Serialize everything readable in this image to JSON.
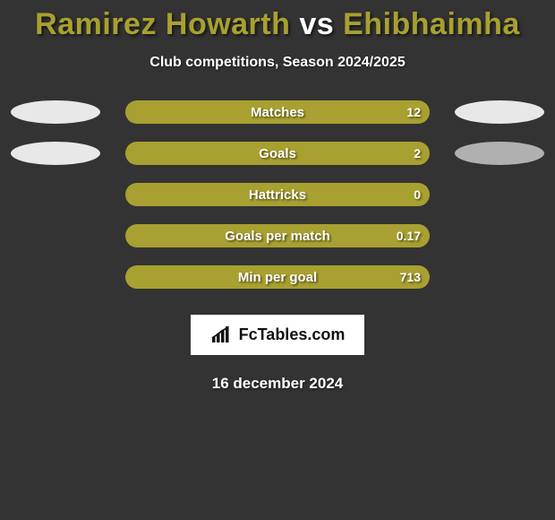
{
  "colors": {
    "background": "#333333",
    "title_player": "#a8a030",
    "title_vs": "#ffffff",
    "bar_fill": "#a8a030",
    "ellipse_left_top": "#e8e8e8",
    "ellipse_right_top": "#e8e8e8",
    "ellipse_left_goals": "#e8e8e8",
    "ellipse_right_goals": "#b0b0b0",
    "brand_bg": "#ffffff",
    "brand_text": "#111111"
  },
  "header": {
    "player1": "Ramirez Howarth",
    "vs": "vs",
    "player2": "Ehibhaimha",
    "subtitle": "Club competitions, Season 2024/2025"
  },
  "stats": [
    {
      "label": "Matches",
      "value": "12",
      "left_ellipse": true,
      "right_ellipse": true,
      "left_color": "#e8e8e8",
      "right_color": "#e8e8e8"
    },
    {
      "label": "Goals",
      "value": "2",
      "left_ellipse": true,
      "right_ellipse": true,
      "left_color": "#e8e8e8",
      "right_color": "#b0b0b0"
    },
    {
      "label": "Hattricks",
      "value": "0",
      "left_ellipse": false,
      "right_ellipse": false
    },
    {
      "label": "Goals per match",
      "value": "0.17",
      "left_ellipse": false,
      "right_ellipse": false
    },
    {
      "label": "Min per goal",
      "value": "713",
      "left_ellipse": false,
      "right_ellipse": false
    }
  ],
  "brand": {
    "text": "FcTables.com"
  },
  "footer": {
    "date": "16 december 2024"
  }
}
